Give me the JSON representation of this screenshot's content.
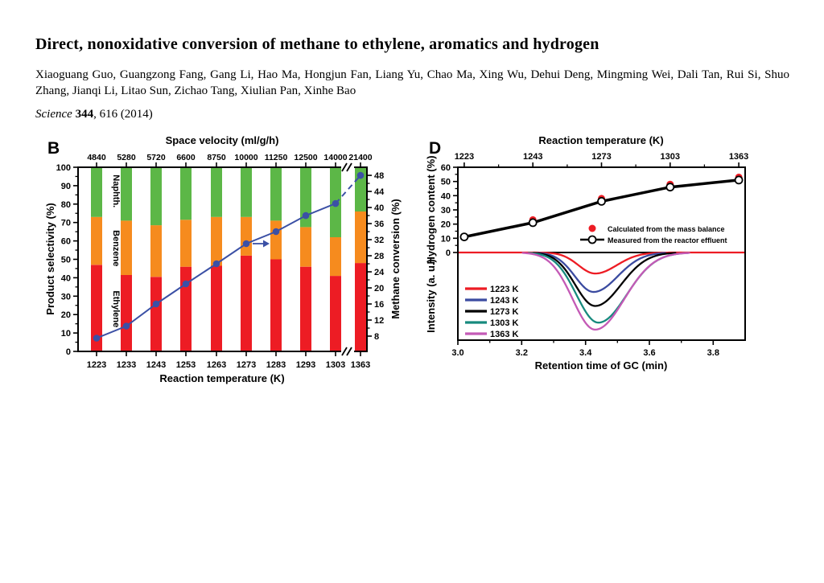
{
  "paper": {
    "title": "Direct, nonoxidative conversion of methane to ethylene, aromatics and hydrogen",
    "authors_line1": "Xiaoguang Guo, Guangzong Fang, Gang Li, Hao Ma, Hongjun Fan, Liang Yu, Chao Ma, Xing Wu, Dehui Deng, Mingming Wei, Dali Tan, Rui Si, Shuo",
    "authors_line2": "Zhang, Jianqi Li, Litao Sun, Zichao Tang, Xiulian Pan, Xinhe Bao",
    "citation": {
      "journal": "Science",
      "volume": "344",
      "rest": ", 616 (2014)"
    }
  },
  "chart_data": [
    {
      "panel": "B",
      "type": "bar",
      "top_axis": {
        "title": "Space velocity (ml/g/h)",
        "tick_labels": [
          "4840",
          "5280",
          "5720",
          "6600",
          "8750",
          "10000",
          "11250",
          "12500",
          "14000",
          "21400"
        ]
      },
      "x_axis": {
        "title": "Reaction temperature (K)",
        "categories": [
          "1223",
          "1233",
          "1243",
          "1253",
          "1263",
          "1273",
          "1283",
          "1293",
          "1303",
          "1363"
        ],
        "break_after_index": 8
      },
      "y_left": {
        "title": "Product selectivity (%)",
        "min": 0,
        "max": 100,
        "tick_step": 10
      },
      "y_right": {
        "title": "Methane conversion (%)",
        "ticks": [
          8,
          12,
          16,
          20,
          24,
          28,
          32,
          36,
          40,
          44,
          48
        ]
      },
      "stacked_series": [
        {
          "name": "Ethylene",
          "color": "#ed1c24",
          "values": [
            47,
            41.5,
            40.5,
            46,
            46.5,
            52,
            50,
            46,
            41,
            48
          ]
        },
        {
          "name": "Benzene",
          "color": "#f68b1e",
          "values": [
            26,
            29.5,
            28,
            25.5,
            26.5,
            21,
            21,
            21.5,
            21,
            28
          ]
        },
        {
          "name": "Naphth.",
          "color": "#5cb747",
          "values": [
            27,
            29,
            31.5,
            28.5,
            27,
            27,
            29,
            32.5,
            38,
            24
          ]
        }
      ],
      "line_series": {
        "name": "Methane conversion",
        "color": "#3b50a5",
        "values": [
          7.5,
          10.5,
          16,
          21,
          26,
          31,
          34,
          38,
          41,
          48
        ],
        "dashed_after_index": 8,
        "arrow_at_index": 5
      },
      "in_plot_labels": [
        {
          "text": "Naphth.",
          "y": 87
        },
        {
          "text": "Benzene",
          "y": 56
        },
        {
          "text": "Ethylene",
          "y": 23
        }
      ]
    },
    {
      "panel": "D",
      "type": "line",
      "top_axis": {
        "title": "Reaction temperature (K)",
        "tick_labels": [
          "1223",
          "1243",
          "1273",
          "1303",
          "1363"
        ],
        "x_positions": [
          3.02,
          3.235,
          3.45,
          3.665,
          3.88
        ]
      },
      "x_axis": {
        "title": "Retention time of GC (min)",
        "min": 3.0,
        "max": 3.9,
        "tick_labels": [
          "3.0",
          "3.2",
          "3.4",
          "3.6",
          "3.8"
        ],
        "tick_values": [
          3.0,
          3.2,
          3.4,
          3.6,
          3.8
        ]
      },
      "y_top": {
        "title": "Hydrogen content (%)",
        "min": 0,
        "max": 60,
        "tick_step": 10
      },
      "y_bottom": {
        "title": "Intensity (a. u.)"
      },
      "hydrogen_series": [
        {
          "name": "Calculated from the mass balance",
          "marker": "filled-circle",
          "color": "#ed1c24",
          "values": [
            11,
            23,
            38,
            48,
            53
          ]
        },
        {
          "name": "Measured from the reactor effluent",
          "marker": "open-circle",
          "color": "#000000",
          "values": [
            11,
            21,
            36,
            46,
            51
          ]
        }
      ],
      "gc_curves": [
        {
          "name": "1223 K",
          "color": "#ed1c24",
          "center": 3.43,
          "depth": 0.24,
          "sigma": 0.052
        },
        {
          "name": "1243 K",
          "color": "#3b4ba0",
          "center": 3.425,
          "depth": 0.45,
          "sigma": 0.058
        },
        {
          "name": "1273 K",
          "color": "#000000",
          "center": 3.43,
          "depth": 0.61,
          "sigma": 0.062
        },
        {
          "name": "1303 K",
          "color": "#178a7e",
          "center": 3.44,
          "depth": 0.8,
          "sigma": 0.068
        },
        {
          "name": "1363 K",
          "color": "#c45ab6",
          "center": 3.43,
          "depth": 0.88,
          "sigma": 0.07
        }
      ]
    }
  ]
}
